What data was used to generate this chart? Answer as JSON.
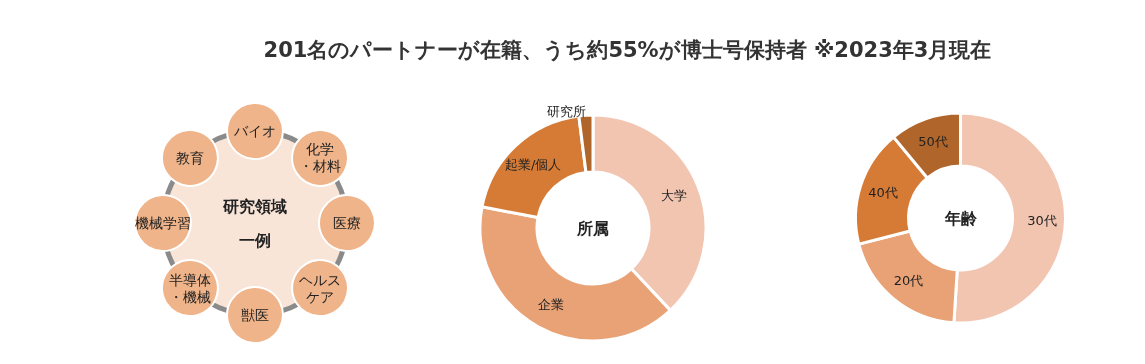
{
  "chart_data": [
    {
      "type": "other",
      "title": "201名のパートナーが在籍、うち約55%が博士号保持者 ※2023年3月現在",
      "annotations": [
        "研究領域一例"
      ],
      "categories": [
        "バイオ",
        "化学・材料",
        "医療",
        "ヘルスケア",
        "獣医",
        "半導体・機械",
        "機械学習",
        "教育"
      ],
      "colors": [
        "#f0b48a"
      ]
    },
    {
      "type": "donut",
      "title": "所属",
      "categories": [
        "大学",
        "企業",
        "起業/個人",
        "研究所"
      ],
      "values": [
        38,
        40,
        20,
        2
      ],
      "colors": [
        "#f2c5b1",
        "#e9a275",
        "#d67b36",
        "#b0652b"
      ]
    },
    {
      "type": "donut",
      "title": "年齢",
      "categories": [
        "30代",
        "20代",
        "40代",
        "50代"
      ],
      "values": [
        51,
        20,
        18,
        11
      ],
      "colors": [
        "#f2c5b1",
        "#e9a275",
        "#d67b36",
        "#b0652b"
      ]
    }
  ]
}
